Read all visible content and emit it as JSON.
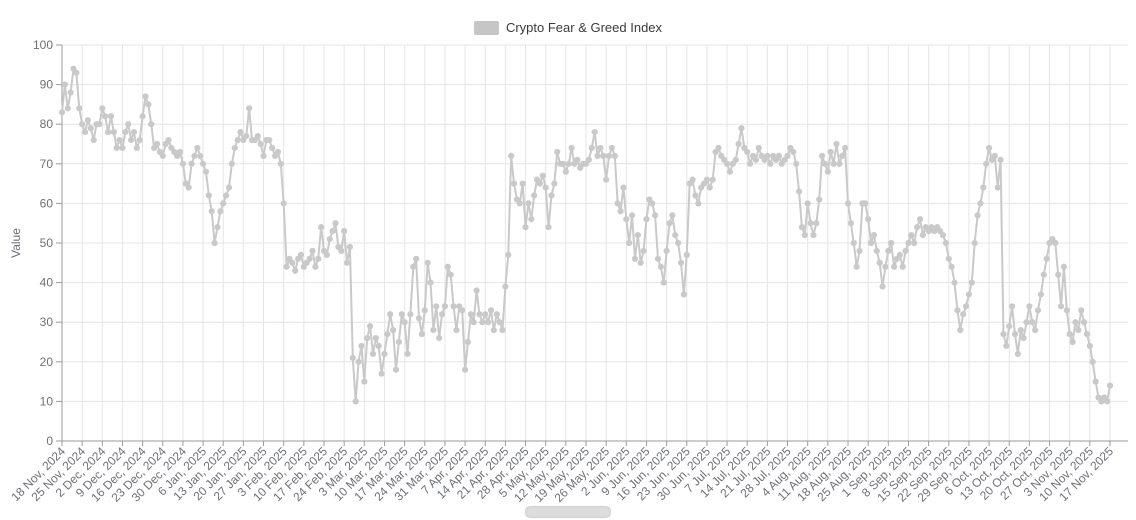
{
  "legend": {
    "label": "Crypto Fear & Greed Index",
    "swatch_color": "#c6c6c6"
  },
  "colors": {
    "series": "#c9c9c9",
    "grid_line": "#e6e6e6",
    "axis_line": "#9a9a9a",
    "axis_label": "#6E7079",
    "legend_text": "#3a3a3a"
  },
  "icons": {
    "legend_swatch": "legend-color-swatch",
    "bottom_partial_control": "slider-thumb"
  },
  "chart_data": {
    "type": "line",
    "title": "Crypto Fear & Greed Index",
    "xlabel": "",
    "ylabel": "Value",
    "ylim": [
      0,
      100
    ],
    "y_ticks": [
      0,
      10,
      20,
      30,
      40,
      50,
      60,
      70,
      80,
      90,
      100
    ],
    "grid": true,
    "legend_position": "top",
    "x_tick_interval_days": 7,
    "x_tick_labels": [
      "18 Nov, 2024",
      "25 Nov, 2024",
      "2 Dec, 2024",
      "9 Dec, 2024",
      "16 Dec, 2024",
      "23 Dec, 2024",
      "30 Dec, 2024",
      "6 Jan, 2025",
      "13 Jan, 2025",
      "20 Jan, 2025",
      "27 Jan, 2025",
      "3 Feb, 2025",
      "10 Feb, 2025",
      "17 Feb, 2025",
      "24 Feb, 2025",
      "3 Mar, 2025",
      "10 Mar, 2025",
      "17 Mar, 2025",
      "24 Mar, 2025",
      "31 Mar, 2025",
      "7 Apr, 2025",
      "14 Apr, 2025",
      "21 Apr, 2025",
      "28 Apr, 2025",
      "5 May, 2025",
      "12 May, 2025",
      "19 May, 2025",
      "26 May, 2025",
      "2 Jun, 2025",
      "9 Jun, 2025",
      "16 Jun, 2025",
      "23 Jun, 2025",
      "30 Jun, 2025",
      "7 Jul, 2025",
      "14 Jul, 2025",
      "21 Jul, 2025",
      "28 Jul, 2025",
      "4 Aug, 2025",
      "11 Aug, 2025",
      "18 Aug, 2025",
      "25 Aug, 2025",
      "1 Sep, 2025",
      "8 Sep, 2025",
      "15 Sep, 2025",
      "22 Sep, 2025",
      "29 Sep, 2025",
      "6 Oct, 2025",
      "13 Oct, 2025",
      "20 Oct, 2025",
      "27 Oct, 2025",
      "3 Nov, 2025",
      "10 Nov, 2025",
      "17 Nov, 2025"
    ],
    "series": [
      {
        "name": "Crypto Fear & Greed Index",
        "color": "#c9c9c9",
        "start_date": "18 Nov, 2024",
        "frequency": "daily",
        "values": [
          83,
          90,
          84,
          88,
          94,
          93,
          84,
          80,
          78,
          81,
          79,
          76,
          80,
          80,
          84,
          82,
          78,
          82,
          78,
          74,
          76,
          74,
          78,
          80,
          76,
          78,
          74,
          76,
          82,
          87,
          85,
          80,
          74,
          75,
          73,
          72,
          75,
          76,
          74,
          73,
          72,
          73,
          70,
          65,
          64,
          70,
          72,
          74,
          72,
          70,
          68,
          62,
          58,
          50,
          54,
          58,
          60,
          62,
          64,
          70,
          74,
          76,
          78,
          76,
          77,
          84,
          76,
          76,
          77,
          75,
          72,
          76,
          76,
          74,
          72,
          73,
          70,
          60,
          44,
          46,
          45,
          43,
          46,
          47,
          44,
          45,
          46,
          48,
          44,
          46,
          54,
          48,
          47,
          51,
          53,
          55,
          49,
          48,
          53,
          45,
          49,
          21,
          10,
          20,
          24,
          15,
          26,
          29,
          22,
          26,
          24,
          17,
          22,
          27,
          32,
          28,
          18,
          25,
          32,
          30,
          22,
          32,
          44,
          46,
          31,
          27,
          33,
          45,
          40,
          28,
          34,
          26,
          32,
          34,
          44,
          42,
          34,
          28,
          34,
          33,
          18,
          25,
          32,
          30,
          38,
          32,
          30,
          32,
          30,
          33,
          28,
          32,
          30,
          28,
          39,
          47,
          72,
          65,
          61,
          60,
          65,
          54,
          60,
          56,
          62,
          66,
          65,
          67,
          64,
          54,
          62,
          65,
          73,
          70,
          70,
          68,
          70,
          74,
          70,
          71,
          69,
          70,
          70,
          71,
          74,
          78,
          72,
          74,
          72,
          66,
          72,
          74,
          72,
          60,
          58,
          64,
          56,
          50,
          57,
          46,
          52,
          45,
          48,
          56,
          61,
          60,
          57,
          46,
          44,
          40,
          48,
          55,
          57,
          52,
          50,
          45,
          37,
          47,
          65,
          66,
          62,
          60,
          64,
          65,
          66,
          64,
          66,
          73,
          74,
          72,
          71,
          70,
          68,
          70,
          71,
          75,
          79,
          74,
          73,
          70,
          72,
          71,
          74,
          72,
          71,
          72,
          70,
          72,
          71,
          72,
          70,
          71,
          72,
          74,
          73,
          70,
          63,
          54,
          52,
          60,
          55,
          52,
          55,
          61,
          72,
          70,
          68,
          73,
          70,
          75,
          70,
          72,
          74,
          60,
          55,
          50,
          44,
          48,
          60,
          60,
          56,
          50,
          52,
          48,
          45,
          39,
          44,
          48,
          50,
          44,
          46,
          47,
          44,
          48,
          50,
          52,
          50,
          54,
          56,
          52,
          54,
          53,
          54,
          53,
          54,
          53,
          52,
          50,
          46,
          44,
          40,
          33,
          28,
          32,
          34,
          37,
          40,
          50,
          57,
          60,
          64,
          70,
          74,
          71,
          72,
          64,
          71,
          27,
          24,
          29,
          34,
          27,
          22,
          28,
          26,
          30,
          34,
          30,
          28,
          33,
          37,
          42,
          46,
          50,
          51,
          50,
          42,
          34,
          44,
          33,
          27,
          25,
          30,
          28,
          33,
          30,
          27,
          24,
          20,
          15,
          11,
          10,
          11,
          10,
          14
        ]
      }
    ]
  }
}
